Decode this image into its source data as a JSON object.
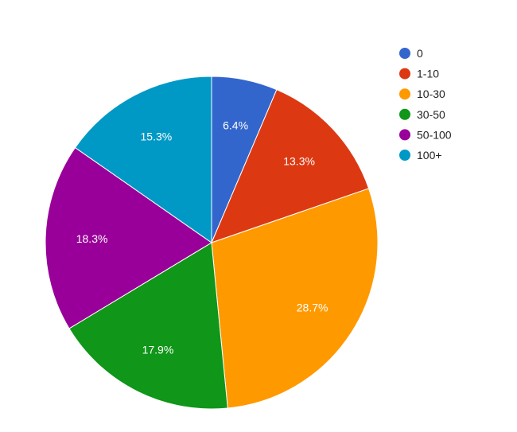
{
  "chart_data": {
    "type": "pie",
    "title": "",
    "legend_position": "right",
    "start_angle": "12 o'clock, clockwise",
    "slices": [
      {
        "label": "0",
        "value": 6.4,
        "display": "6.4%",
        "color": "#3366cc"
      },
      {
        "label": "1-10",
        "value": 13.3,
        "display": "13.3%",
        "color": "#dc3912"
      },
      {
        "label": "10-30",
        "value": 28.7,
        "display": "28.7%",
        "color": "#ff9900"
      },
      {
        "label": "30-50",
        "value": 17.9,
        "display": "17.9%",
        "color": "#109618"
      },
      {
        "label": "50-100",
        "value": 18.3,
        "display": "18.3%",
        "color": "#990099"
      },
      {
        "label": "100+",
        "value": 15.3,
        "display": "15.3%",
        "color": "#0099c6"
      }
    ]
  }
}
